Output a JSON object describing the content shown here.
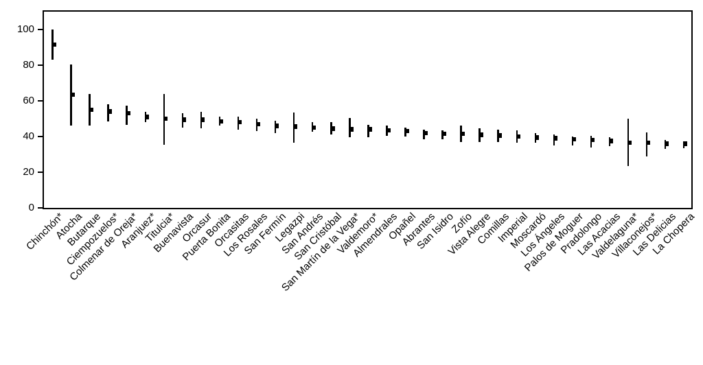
{
  "figure": {
    "background_color": "#ffffff",
    "ink_color": "#000000"
  },
  "chart_data": {
    "type": "scatter",
    "subtype": "point-estimate-with-error-bars",
    "title": "",
    "xlabel": "",
    "ylabel": "",
    "ylim": [
      0,
      110
    ],
    "yticks": [
      0,
      20,
      40,
      60,
      80,
      100
    ],
    "grid": false,
    "legend_position": "none",
    "x_label_rotation_deg": 45,
    "categories": [
      "Chinchón*",
      "Atocha",
      "Butarque",
      "Ciempozuelos*",
      "Colmenar de Oreja*",
      "Aranjuez*",
      "Titulcia*",
      "Buenavista",
      "Orcasur",
      "Puerta Bonita",
      "Orcasitas",
      "Los Rosales",
      "San Fermín",
      "Legazpi",
      "San Andrés",
      "San Cristóbal",
      "San Martín de la Vega*",
      "Valdemoro*",
      "Almendrales",
      "Opañel",
      "Abrantes",
      "San Isidro",
      "Zofío",
      "Vista Alegre",
      "Comillas",
      "Imperial",
      "Moscardó",
      "Los Ángeles",
      "Palos de Moguer",
      "Pradolongo",
      "Las Acacias",
      "Valdelaguna*",
      "Villaconejos*",
      "Las Delicias",
      "La Chopera"
    ],
    "series": [
      {
        "name": "estimate",
        "values": [
          91.5,
          63.5,
          55,
          54,
          53,
          51,
          50,
          49.5,
          49.5,
          48.5,
          48,
          47,
          46,
          45.5,
          45,
          44.5,
          44,
          44,
          43.5,
          43,
          42,
          41.5,
          41.5,
          41,
          40.5,
          40,
          39.5,
          39,
          38.5,
          38,
          37.5,
          36.5,
          36.5,
          36,
          36
        ]
      },
      {
        "name": "ci_low",
        "values": [
          83,
          46,
          46,
          48.5,
          46.5,
          48,
          35.5,
          45,
          44.5,
          46,
          44,
          43,
          42,
          36.5,
          42.5,
          41,
          39.5,
          39.5,
          40.5,
          40,
          38.5,
          38.5,
          37,
          37,
          37,
          36.5,
          36.5,
          35,
          35,
          34,
          34.5,
          23.5,
          29,
          33,
          33.5
        ]
      },
      {
        "name": "ci_high",
        "values": [
          100,
          80.5,
          64,
          58,
          57.5,
          54,
          64,
          53,
          54,
          51,
          51,
          50,
          49,
          53.5,
          48,
          48,
          50.5,
          46.5,
          46,
          45,
          44,
          43.5,
          46,
          44.5,
          44,
          43.5,
          42,
          41,
          40,
          40.5,
          39.5,
          50,
          42.5,
          38,
          37.5
        ]
      }
    ]
  }
}
